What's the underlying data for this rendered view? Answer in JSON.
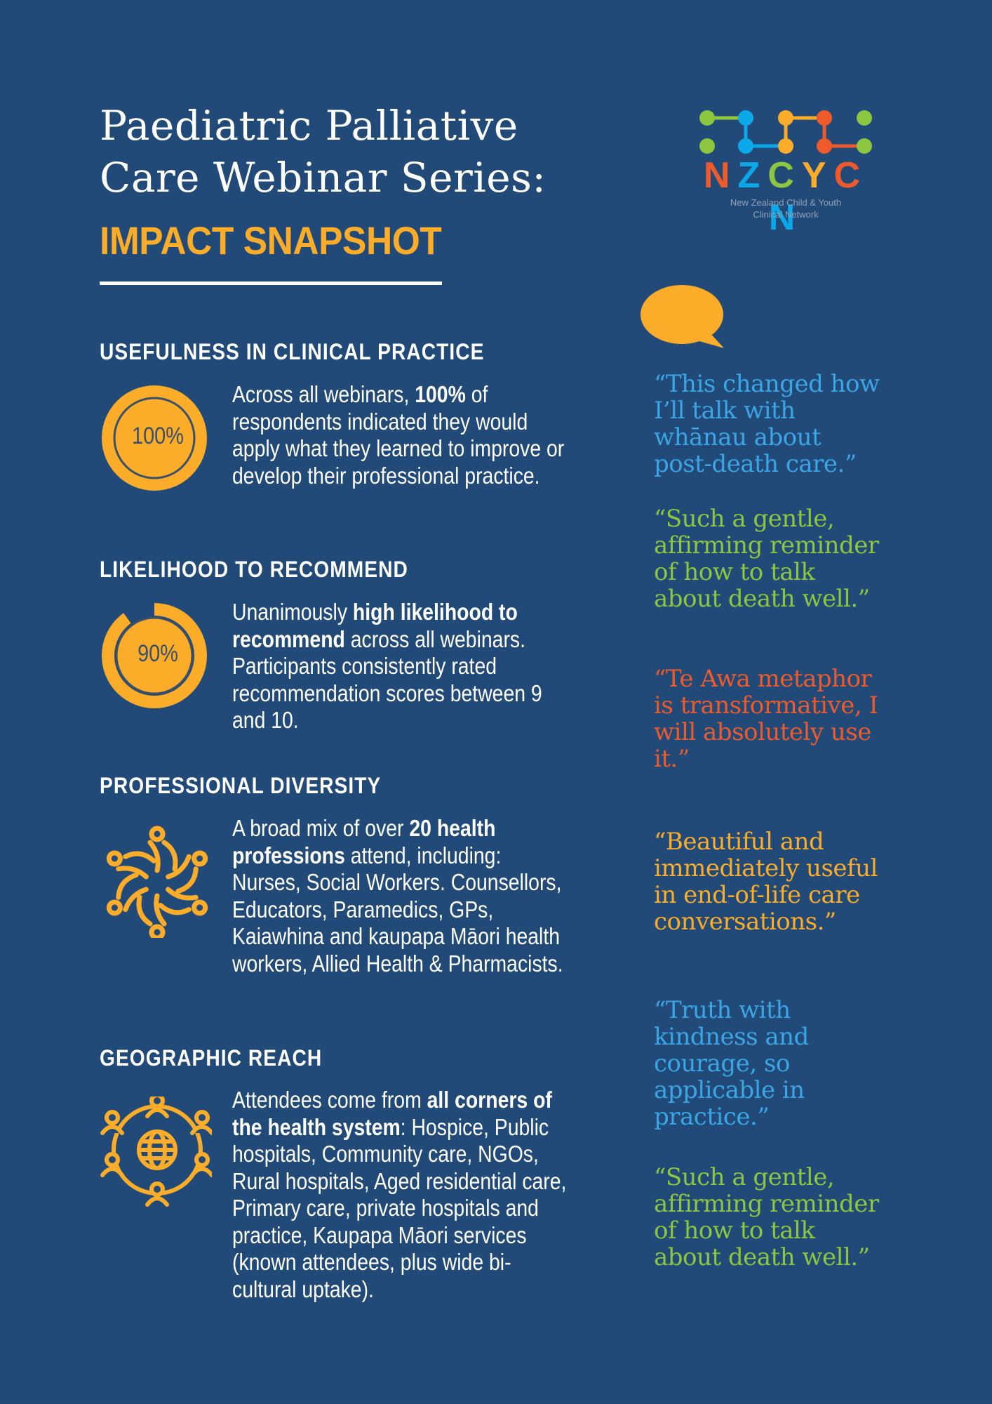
{
  "header": {
    "title_line1": "Paediatric Palliative",
    "title_line2": "Care Webinar Series:",
    "subtitle": "IMPACT SNAPSHOT"
  },
  "logo": {
    "letters": [
      "N",
      "Z",
      "C",
      "Y",
      "C",
      "N"
    ],
    "letter_colors": [
      "#ef5a2a",
      "#0aa8e8",
      "#8dc63f",
      "#fbad29",
      "#ef5a2a",
      "#0aa8e8"
    ],
    "tagline_line1": "New Zealand Child & Youth",
    "tagline_line2": "Clinical Network"
  },
  "colors": {
    "background": "#224a78",
    "accent": "#fbad29",
    "quote_blue": "#3aa6e6",
    "quote_green": "#8dc63f",
    "quote_orange": "#ef5a2a",
    "quote_yellow": "#fbad29"
  },
  "sections": [
    {
      "heading": "USEFULNESS IN CLINICAL PRACTICE",
      "icon": "progress-ring-icon",
      "ring_label": "100%",
      "ring_fraction": 1.0,
      "body_pre": "Across all webinars, ",
      "body_bold": "100%",
      "body_post": " of respondents indicated they would apply what they learned to improve or develop their professional practice."
    },
    {
      "heading": "LIKELIHOOD TO RECOMMEND",
      "icon": "progress-ring-icon",
      "ring_label": "90%",
      "ring_fraction": 0.9,
      "body_pre": "Unanimously ",
      "body_bold": "high likelihood to recommend",
      "body_post": " across all webinars. Participants consistently rated recommendation scores between 9 and 10."
    },
    {
      "heading": "PROFESSIONAL DIVERSITY",
      "icon": "people-circle-icon",
      "body_pre": "A broad mix of over ",
      "body_bold": "20 health professions",
      "body_post": " attend, including: Nurses, Social Workers. Counsellors, Educators, Paramedics, GPs, Kaiawhina and kaupapa Māori health workers,  Allied Health & Pharmacists."
    },
    {
      "heading": "GEOGRAPHIC REACH",
      "icon": "globe-people-icon",
      "body_pre": "Attendees come from ",
      "body_bold": "all corners of the health system",
      "body_post": ": Hospice, Public hospitals, Community care, NGOs, Rural hospitals, Aged residential care, Primary care, private hospitals and practice, Kaupapa Māori services (known attendees, plus wide bi-cultural uptake)."
    }
  ],
  "quotes": [
    {
      "text": "“This changed how I’ll talk with whānau about post-death care.”",
      "color": "#3aa6e6"
    },
    {
      "text": "“Such a gentle, affirming reminder of how to talk about death well.”",
      "color": "#8dc63f"
    },
    {
      "text": "“Te Awa metaphor is transformative, I will absolutely use it.”",
      "color": "#ef5a2a"
    },
    {
      "text": "“Beautiful and immediately useful in end-of-life care conversations.”",
      "color": "#fbad29"
    },
    {
      "text": "“Truth with kindness and courage, so applicable in practice.”",
      "color": "#3aa6e6"
    },
    {
      "text": "“Such a gentle, affirming reminder of how to talk about death well.”",
      "color": "#8dc63f"
    }
  ]
}
